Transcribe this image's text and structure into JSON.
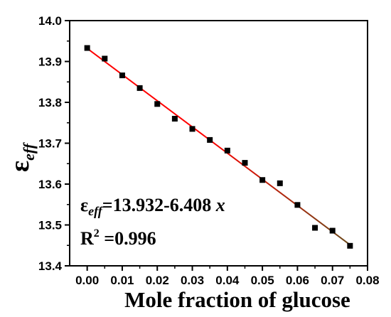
{
  "chart_data": {
    "type": "scatter",
    "title": "",
    "xlabel": "Mole fraction of glucose",
    "ylabel": {
      "main": "ε",
      "sub": "eff"
    },
    "xlim": [
      -0.005,
      0.08
    ],
    "ylim": [
      13.4,
      14.0
    ],
    "x_ticks": [
      0.0,
      0.01,
      0.02,
      0.03,
      0.04,
      0.05,
      0.06,
      0.07,
      0.08
    ],
    "x_tick_labels": [
      "0.00",
      "0.01",
      "0.02",
      "0.03",
      "0.04",
      "0.05",
      "0.06",
      "0.07",
      "0.08"
    ],
    "y_ticks": [
      13.4,
      13.5,
      13.6,
      13.7,
      13.8,
      13.9,
      14.0
    ],
    "y_tick_labels": [
      "13.4",
      "13.5",
      "13.6",
      "13.7",
      "13.8",
      "13.9",
      "14.0"
    ],
    "grid": false,
    "series": [
      {
        "marker": "square",
        "color": "#000000",
        "x": [
          0.0,
          0.005,
          0.01,
          0.015,
          0.02,
          0.025,
          0.03,
          0.035,
          0.04,
          0.045,
          0.05,
          0.055,
          0.06,
          0.065,
          0.07,
          0.075
        ],
        "y": [
          13.933,
          13.907,
          13.866,
          13.835,
          13.796,
          13.76,
          13.735,
          13.708,
          13.682,
          13.652,
          13.61,
          13.602,
          13.549,
          13.493,
          13.486,
          13.449
        ]
      }
    ],
    "fit_line": {
      "intercept": 13.932,
      "slope": -6.408,
      "x_range": [
        0.0,
        0.075
      ],
      "color_start": "#ff0000",
      "color_end": "#6b4a1a"
    },
    "annotations": {
      "equation": {
        "eps": "ε",
        "sub": "eff",
        "rest": "=13.932-6.408 ",
        "var": "x"
      },
      "r2": {
        "prefix": "R",
        "sup": "2",
        "rest": " =0.996"
      }
    }
  }
}
